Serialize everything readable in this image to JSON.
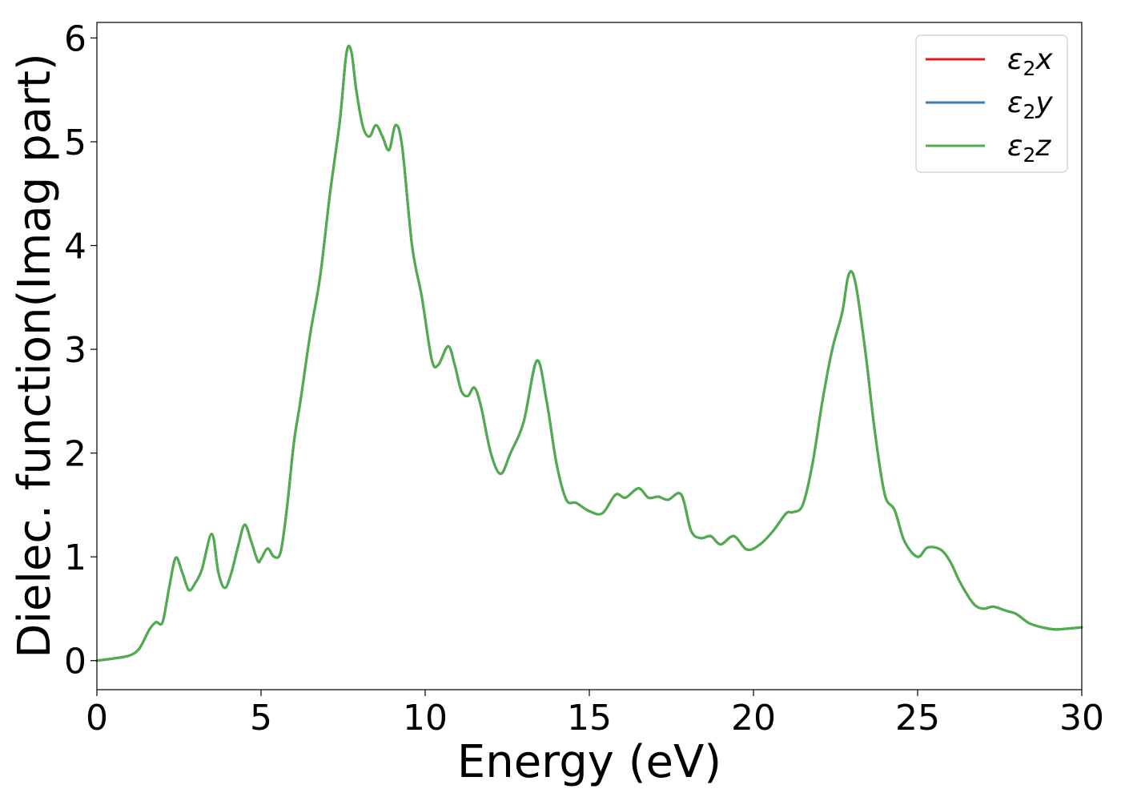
{
  "chart_data": {
    "type": "line",
    "xlabel": "Energy (eV)",
    "ylabel": "Dielec. function(Imag part)",
    "xlim": [
      0,
      30
    ],
    "ylim": [
      -0.28,
      6.15
    ],
    "xticks": [
      0,
      5,
      10,
      15,
      20,
      25,
      30
    ],
    "yticks": [
      0,
      1,
      2,
      3,
      4,
      5,
      6
    ],
    "grid": false,
    "legend_position": "top-right",
    "series": [
      {
        "name": "ε₂x",
        "legend_main": "ε",
        "legend_sub": "2",
        "legend_tail": "x",
        "color": "#e41a1c"
      },
      {
        "name": "ε₂y",
        "legend_main": "ε",
        "legend_sub": "2",
        "legend_tail": "y",
        "color": "#377eb8"
      },
      {
        "name": "ε₂z",
        "legend_main": "ε",
        "legend_sub": "2",
        "legend_tail": "z",
        "color": "#4daf4a"
      }
    ],
    "x": [
      0,
      0.5,
      1.0,
      1.3,
      1.6,
      1.8,
      2.0,
      2.2,
      2.4,
      2.6,
      2.8,
      3.0,
      3.2,
      3.5,
      3.7,
      3.9,
      4.1,
      4.3,
      4.5,
      4.7,
      4.9,
      5.0,
      5.2,
      5.4,
      5.6,
      5.8,
      6.0,
      6.2,
      6.5,
      6.8,
      7.1,
      7.4,
      7.6,
      7.75,
      7.9,
      8.1,
      8.3,
      8.5,
      8.7,
      8.9,
      9.1,
      9.3,
      9.6,
      9.9,
      10.2,
      10.4,
      10.7,
      10.9,
      11.1,
      11.3,
      11.5,
      11.7,
      12.0,
      12.3,
      12.6,
      13.0,
      13.4,
      13.7,
      14.0,
      14.3,
      14.6,
      15.0,
      15.4,
      15.8,
      16.1,
      16.5,
      16.8,
      17.1,
      17.4,
      17.8,
      18.1,
      18.4,
      18.7,
      19.0,
      19.4,
      19.8,
      20.2,
      20.6,
      21.0,
      21.2,
      21.5,
      21.8,
      22.1,
      22.4,
      22.7,
      22.9,
      23.1,
      23.4,
      23.7,
      24.0,
      24.3,
      24.6,
      25.0,
      25.3,
      25.7,
      26.0,
      26.3,
      26.7,
      27.0,
      27.3,
      27.7,
      28.0,
      28.4,
      28.8,
      29.2,
      29.6,
      30.0
    ],
    "y": [
      0.0,
      0.02,
      0.05,
      0.12,
      0.3,
      0.37,
      0.37,
      0.7,
      0.99,
      0.85,
      0.68,
      0.75,
      0.88,
      1.22,
      0.85,
      0.7,
      0.85,
      1.1,
      1.31,
      1.15,
      0.96,
      0.98,
      1.08,
      1.0,
      1.05,
      1.5,
      2.1,
      2.5,
      3.15,
      3.7,
      4.5,
      5.2,
      5.85,
      5.87,
      5.5,
      5.15,
      5.05,
      5.16,
      5.05,
      4.92,
      5.16,
      4.95,
      4.0,
      3.5,
      2.9,
      2.85,
      3.03,
      2.85,
      2.6,
      2.55,
      2.63,
      2.45,
      2.0,
      1.8,
      2.0,
      2.3,
      2.89,
      2.5,
      1.9,
      1.55,
      1.52,
      1.44,
      1.42,
      1.6,
      1.57,
      1.66,
      1.57,
      1.58,
      1.55,
      1.6,
      1.25,
      1.18,
      1.2,
      1.12,
      1.2,
      1.07,
      1.12,
      1.25,
      1.42,
      1.43,
      1.5,
      1.9,
      2.5,
      3.0,
      3.35,
      3.72,
      3.65,
      3.0,
      2.2,
      1.6,
      1.45,
      1.15,
      1.0,
      1.09,
      1.07,
      0.95,
      0.75,
      0.55,
      0.5,
      0.52,
      0.48,
      0.45,
      0.36,
      0.32,
      0.3,
      0.31,
      0.32
    ]
  }
}
